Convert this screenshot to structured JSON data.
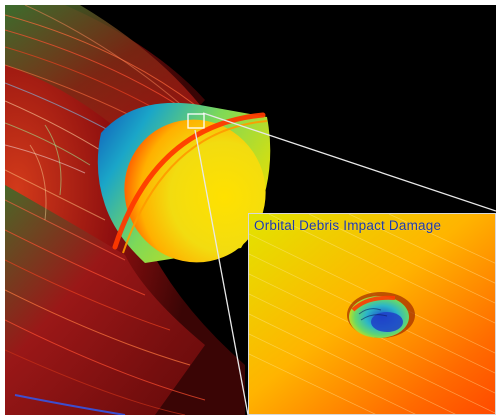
{
  "inset": {
    "caption": "Orbital Debris Impact Damage"
  },
  "colors": {
    "background": "#000000",
    "frame": "#ffffff",
    "callout_line": "#e8e8e8",
    "flow_red": "#b01010",
    "flow_green": "#2e7d32",
    "capsule_blue": "#1565c0",
    "capsule_yellow": "#e8d800",
    "heat_orange": "#ff5a00"
  },
  "icons": [
    "capsule-shape",
    "impact-crater"
  ]
}
